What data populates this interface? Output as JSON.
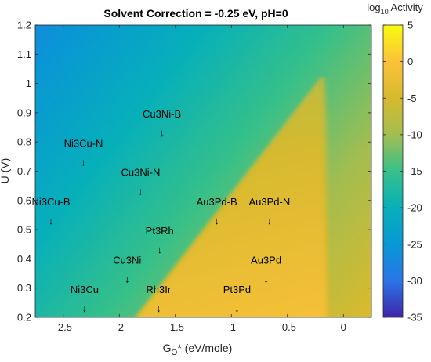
{
  "chart_data": {
    "type": "heatmap",
    "title": "Solvent Correction = -0.25 eV, pH=0",
    "xlabel": {
      "main": "G",
      "sub": "O",
      "rest": "* (eV/mole)"
    },
    "ylabel": "U (V)",
    "xlim": [
      -2.75,
      0.25
    ],
    "ylim": [
      0.2,
      1.2
    ],
    "x_ticks": [
      -2.5,
      -2,
      -1.5,
      -1,
      -0.5,
      0
    ],
    "x_tick_labels": [
      "-2.5",
      "-2",
      "-1.5",
      "-1",
      "-0.5",
      "0"
    ],
    "y_ticks": [
      0.2,
      0.3,
      0.4,
      0.5,
      0.6,
      0.7,
      0.8,
      0.9,
      1,
      1.1,
      1.2
    ],
    "y_tick_labels": [
      "0.2",
      "0.3",
      "0.4",
      "0.5",
      "0.6",
      "0.7",
      "0.8",
      "0.9",
      "1",
      "1.1",
      "1.2"
    ],
    "colorbar": {
      "label": {
        "pre": "log",
        "sub": "10",
        "post": " Activity"
      },
      "range": [
        -35,
        5
      ],
      "ticks": [
        5,
        0,
        -5,
        -10,
        -15,
        -20,
        -25,
        -30,
        -35
      ],
      "tick_labels": [
        "5",
        "0",
        "-5",
        "-10",
        "-15",
        "-20",
        "-25",
        "-30",
        "-35"
      ],
      "colormap": "parula"
    },
    "annotations": [
      {
        "label": "Cu3Ni-B",
        "x": -1.62,
        "y": 0.83
      },
      {
        "label": "Ni3Cu-N",
        "x": -2.32,
        "y": 0.73
      },
      {
        "label": "Cu3Ni-N",
        "x": -1.81,
        "y": 0.63
      },
      {
        "label": "Ni3Cu-B",
        "x": -2.61,
        "y": 0.53
      },
      {
        "label": "Au3Pd-B",
        "x": -1.13,
        "y": 0.53
      },
      {
        "label": "Au3Pd-N",
        "x": -0.66,
        "y": 0.53
      },
      {
        "label": "Pt3Rh",
        "x": -1.64,
        "y": 0.43
      },
      {
        "label": "Cu3Ni",
        "x": -1.93,
        "y": 0.33
      },
      {
        "label": "Au3Pd",
        "x": -0.69,
        "y": 0.33
      },
      {
        "label": "Ni3Cu",
        "x": -2.31,
        "y": 0.23
      },
      {
        "label": "Rh3Ir",
        "x": -1.65,
        "y": 0.23
      },
      {
        "label": "Pt3Pd",
        "x": -0.95,
        "y": 0.23
      }
    ],
    "arrow_glyph": "↓",
    "volcano": {
      "apex_x": -0.2,
      "apex_y": 1.02,
      "left_base_x": -1.85,
      "right_base_x": -0.18,
      "base_y": 0.2
    }
  }
}
